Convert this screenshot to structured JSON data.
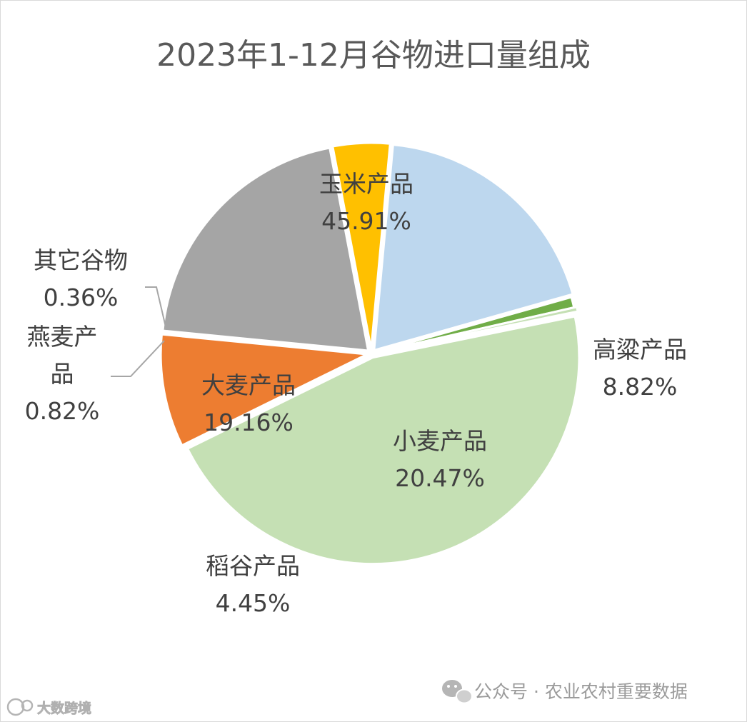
{
  "chart_data": {
    "type": "pie",
    "title": "2023年1-12月谷物进口量组成",
    "slices": [
      {
        "name": "玉米产品",
        "value": 45.91,
        "label": "45.91%",
        "color": "#c5e0b4"
      },
      {
        "name": "高粱产品",
        "value": 8.82,
        "label": "8.82%",
        "color": "#ed7d31"
      },
      {
        "name": "小麦产品",
        "value": 20.47,
        "label": "20.47%",
        "color": "#a5a5a5"
      },
      {
        "name": "稻谷产品",
        "value": 4.45,
        "label": "4.45%",
        "color": "#ffc000"
      },
      {
        "name": "大麦产品",
        "value": 19.16,
        "label": "19.16%",
        "color": "#bdd7ee"
      },
      {
        "name": "燕麦产品",
        "value": 0.82,
        "label": "0.82%",
        "color": "#70ad47"
      },
      {
        "name": "其它谷物",
        "value": 0.36,
        "label": "0.36%",
        "color": "#c5e0b4"
      }
    ]
  },
  "watermark": {
    "source": "公众号 · 农业农村重要数据",
    "brand": "大数跨境",
    "icons": [
      "wechat-icon",
      "brand-logo-icon"
    ]
  }
}
